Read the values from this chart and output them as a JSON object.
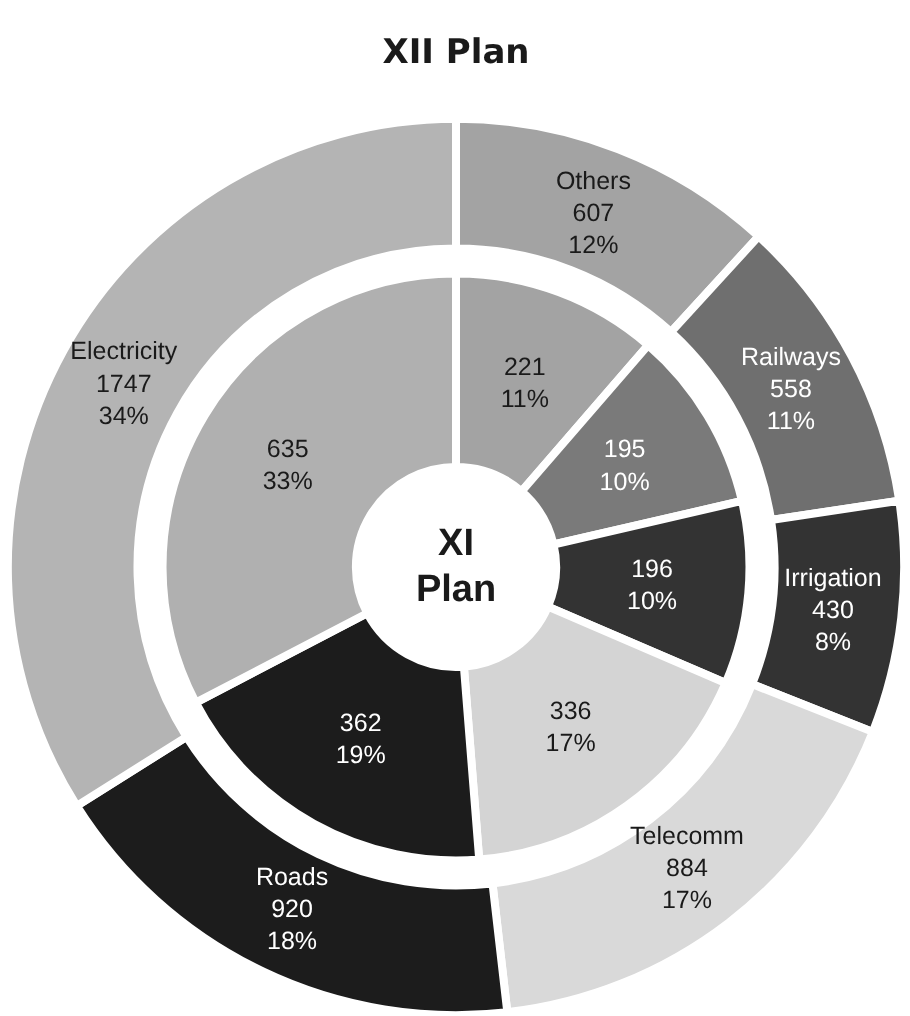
{
  "chart_data": {
    "type": "donut",
    "title": "XII Plan",
    "categories": [
      "Others",
      "Railways",
      "Irrigation",
      "Telecomm",
      "Roads",
      "Electricity"
    ],
    "series": [
      {
        "values": [
          607,
          558,
          430,
          884,
          920,
          1747
        ],
        "value_labels": [
          "607\n12%",
          "558\n11%",
          "430\n8%",
          "884\n17%",
          "920\n18%",
          "1747\n34%"
        ],
        "colors": [
          "#a3a3a3",
          "#6f6f6f",
          "#333333",
          "#d9d9d9",
          "#1c1c1c",
          "#b4b4b4"
        ]
      },
      {
        "name": "XI Plan",
        "values": [
          221,
          195,
          196,
          336,
          362,
          635
        ],
        "value_labels": [
          "221\n11%",
          "195\n10%",
          "196\n10%",
          "336\n17%",
          "362\n19%",
          "635\n33%"
        ],
        "colors": [
          "#a3a3a3",
          "#7a7a7a",
          "#333333",
          "#d4d4d4",
          "#1c1c1c",
          "#b0b0b0"
        ]
      }
    ]
  }
}
